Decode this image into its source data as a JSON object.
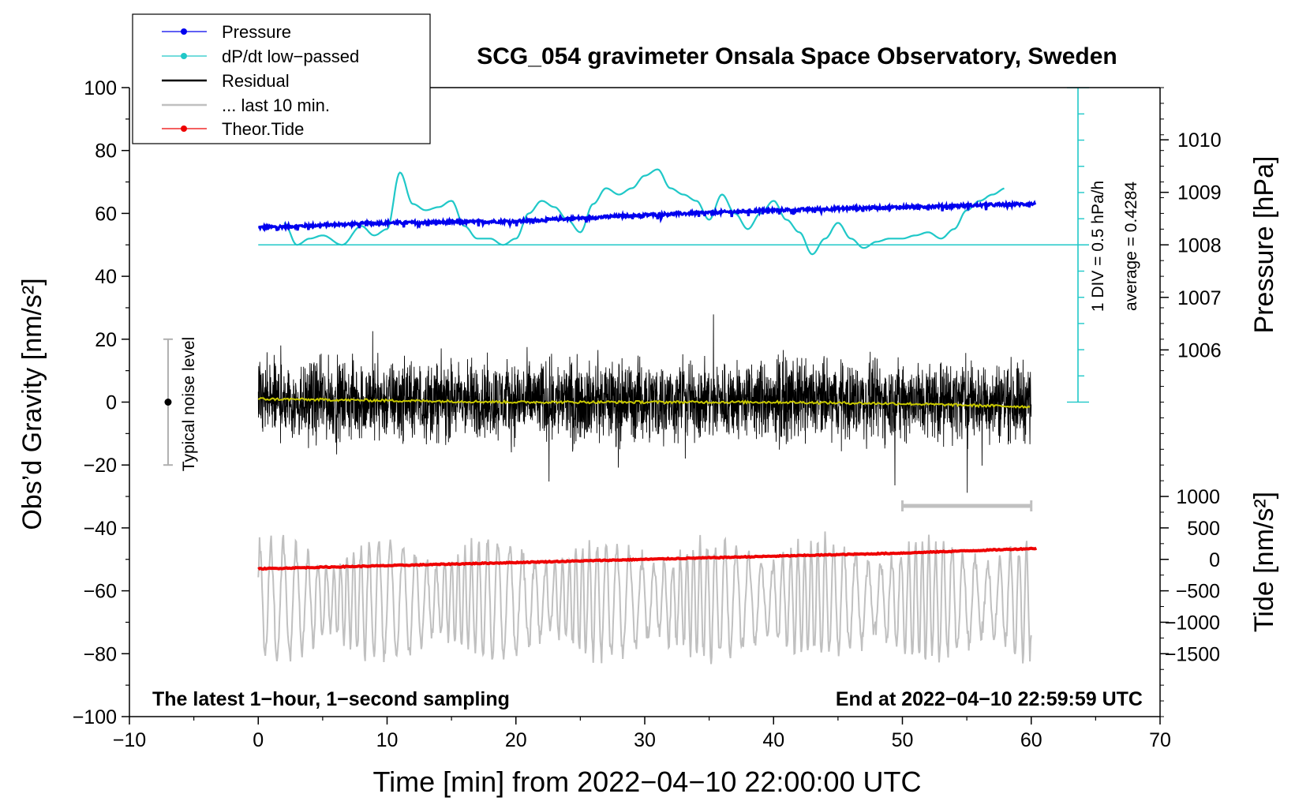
{
  "chart_data": {
    "type": "line",
    "title": "SCG_054 gravimeter Onsala Space Observatory, Sweden",
    "xlabel": "Time [min] from 2022−04−10 22:00:00 UTC",
    "ylabel": "Obs’d Gravity [nm/s²]",
    "ylabel_right_top": "Pressure [hPa]",
    "ylabel_right_bottom": "Tide [nm/s²]",
    "xlim": [
      -10,
      70
    ],
    "ylim": [
      -100,
      100
    ],
    "xticks": [
      "−10",
      "0",
      "10",
      "20",
      "30",
      "40",
      "50",
      "60",
      "70"
    ],
    "yticks": [
      "100",
      "80",
      "60",
      "40",
      "20",
      "0",
      "−20",
      "−40",
      "−60",
      "−80",
      "−100"
    ],
    "pressure_axis": {
      "ticks": [
        {
          "label": "1010",
          "value": 1010
        },
        {
          "label": "1009",
          "value": 1009
        },
        {
          "label": "1008",
          "value": 1008
        },
        {
          "label": "1007",
          "value": 1007
        },
        {
          "label": "1006",
          "value": 1006
        }
      ],
      "gravity_at_1008": 50,
      "gravity_per_hPa": 16.7
    },
    "tide_axis": {
      "ticks": [
        {
          "label": "1000",
          "value": 1000
        },
        {
          "label": "500",
          "value": 500
        },
        {
          "label": "0",
          "value": 0
        },
        {
          "label": "−500",
          "value": -500
        },
        {
          "label": "−1000",
          "value": -1000
        },
        {
          "label": "−1500",
          "value": -1500
        }
      ],
      "gravity_at_0": -50,
      "gravity_per_unit": 0.02
    },
    "legend": {
      "position": "top-left",
      "entries": [
        {
          "label": "Pressure",
          "color": "#0000ee",
          "dot": true
        },
        {
          "label": "dP/dt low−passed",
          "color": "#20c8c8",
          "dot": true
        },
        {
          "label": "Residual",
          "color": "#000000",
          "dot": false
        },
        {
          "label": "... last 10 min.",
          "color": "#c0c0c0",
          "dot": false
        },
        {
          "label": "Theor.Tide",
          "color": "#ee0000",
          "dot": true
        }
      ]
    },
    "annotations": {
      "noise_label": "Typical noise level",
      "noise_range": [
        -20,
        20
      ],
      "noise_x": -7,
      "div_label": "1 DIV = 0.5 hPa/h",
      "average_label": "average = 0.4284",
      "bottom_left": "The latest 1−hour, 1−second sampling",
      "bottom_right": "End at 2022−04−10 22:59:59 UTC",
      "last10_bar": [
        50,
        60
      ],
      "last10_bar_y": -33
    },
    "series": [
      {
        "name": "Pressure",
        "color": "#0000ee",
        "x": [
          0,
          10,
          20,
          30,
          40,
          50,
          60
        ],
        "y": [
          55.5,
          57,
          57.5,
          59.5,
          61,
          62,
          63
        ]
      },
      {
        "name": "dP/dt low−passed",
        "color": "#20c8c8",
        "baseline": 50,
        "x": [
          2,
          3,
          4,
          5,
          6.5,
          8,
          9,
          10,
          11,
          12,
          13,
          14,
          15,
          16,
          17,
          18,
          19,
          20,
          21,
          22,
          23,
          24,
          25,
          26,
          27,
          28,
          29,
          30,
          31,
          32,
          33,
          34,
          35,
          36,
          37,
          38,
          39,
          40,
          41,
          42,
          43,
          44,
          45,
          46,
          47,
          48,
          49,
          50,
          51,
          52,
          53,
          54,
          55,
          56,
          57,
          58
        ],
        "y": [
          57,
          50,
          52,
          53,
          50,
          56,
          53,
          55,
          73,
          63,
          61,
          62,
          64,
          56,
          52,
          52,
          50,
          52,
          60,
          64,
          62,
          58,
          54,
          63,
          68,
          66,
          68,
          72,
          74,
          68,
          66,
          64,
          58,
          66,
          60,
          55,
          60,
          64,
          58,
          54,
          47,
          52,
          57,
          52,
          49,
          51,
          52,
          52,
          53,
          54,
          52,
          55,
          61,
          64,
          66,
          68
        ]
      },
      {
        "name": "Residual",
        "color": "#000000",
        "x0": 0,
        "x1": 60,
        "amplitude": 18,
        "mean": 0.5
      },
      {
        "name": "Residual mean",
        "color": "#c8c800",
        "x": [
          0,
          10,
          20,
          30,
          40,
          50,
          60
        ],
        "y": [
          1,
          0.5,
          0,
          0,
          0,
          -0.5,
          -1.5
        ]
      },
      {
        "name": "... last 10 min.",
        "color": "#c0c0c0",
        "x0": 0,
        "x1": 60,
        "center": -63,
        "amplitude": 18
      },
      {
        "name": "Theor.Tide",
        "color": "#ee0000",
        "x": [
          0,
          10,
          20,
          30,
          40,
          50,
          60.5
        ],
        "y": [
          -53,
          -52,
          -51,
          -50,
          -49,
          -48,
          -46.5
        ]
      }
    ]
  }
}
